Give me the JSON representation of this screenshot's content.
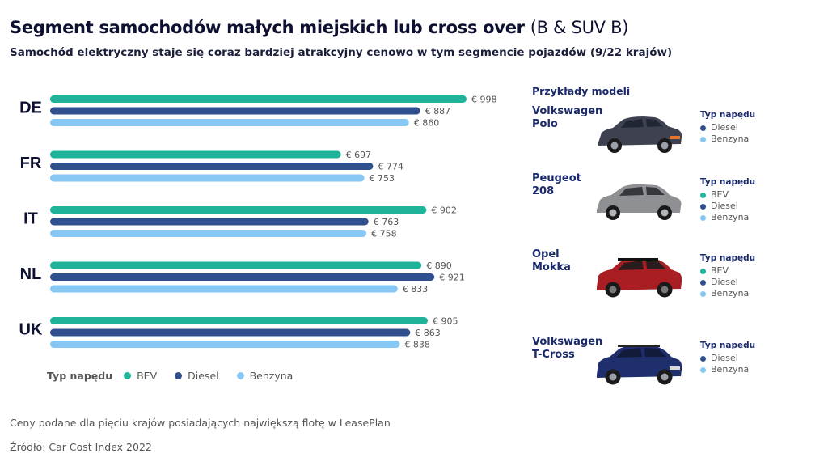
{
  "header": {
    "title_main": "Segment samochodów małych miejskich lub cross over",
    "title_suffix": "(B & SUV B)",
    "subtitle": "Samochód elektryczny staje się coraz bardziej atrakcyjny cenowo w tym segmencie pojazdów (9/22 krajów)"
  },
  "colors": {
    "BEV": "#1fb39a",
    "Diesel": "#2f4f8f",
    "Benzyna": "#86c7f3"
  },
  "chart_data": {
    "type": "bar",
    "orientation": "horizontal",
    "categories": [
      "DE",
      "FR",
      "IT",
      "NL",
      "UK"
    ],
    "series": [
      {
        "name": "BEV",
        "values": [
          998,
          697,
          902,
          890,
          905
        ]
      },
      {
        "name": "Diesel",
        "values": [
          887,
          774,
          763,
          921,
          863
        ]
      },
      {
        "name": "Benzyna",
        "values": [
          860,
          753,
          758,
          833,
          838
        ]
      }
    ],
    "value_prefix": "€ ",
    "xlim": [
      0,
      1000
    ]
  },
  "legend": {
    "label": "Typ napędu",
    "items": [
      "BEV",
      "Diesel",
      "Benzyna"
    ]
  },
  "footer": {
    "note": "Ceny podane dla pięciu krajów posiadających największą flotę w LeasePlan",
    "source": "Źródło: Car Cost Index 2022"
  },
  "models": {
    "heading": "Przykłady modeli",
    "drive_heading": "Typ napędu",
    "items": [
      {
        "name_line1": "Volkswagen",
        "name_line2": "Polo",
        "drives": [
          "Diesel",
          "Benzyna"
        ],
        "car_color": "#3d4150"
      },
      {
        "name_line1": "Peugeot",
        "name_line2": "208",
        "drives": [
          "BEV",
          "Diesel",
          "Benzyna"
        ],
        "car_color": "#8e9093"
      },
      {
        "name_line1": "Opel",
        "name_line2": "Mokka",
        "drives": [
          "BEV",
          "Diesel",
          "Benzyna"
        ],
        "car_color": "#a81e22"
      },
      {
        "name_line1": "Volkswagen",
        "name_line2": "T-Cross",
        "drives": [
          "Diesel",
          "Benzyna"
        ],
        "car_color": "#1f2f6e"
      }
    ]
  }
}
